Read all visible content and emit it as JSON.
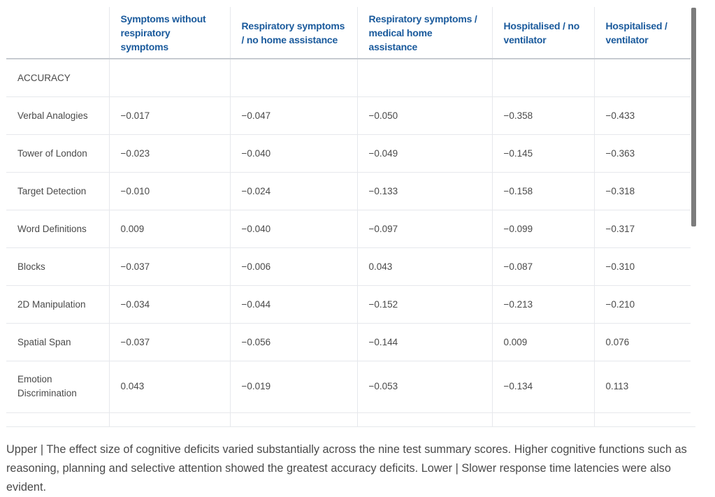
{
  "table": {
    "headers": [
      "",
      "Symptoms without respiratory symptoms",
      "Respiratory symptoms / no home assistance",
      "Respiratory symptoms / medical home assistance",
      "Hospitalised / no ventilator",
      "Hospitalised / ventilator"
    ],
    "section_label": "ACCURACY",
    "rows": [
      {
        "label": "Verbal Analogies",
        "values": [
          "−0.017",
          "−0.047",
          "−0.050",
          "−0.358",
          "−0.433"
        ]
      },
      {
        "label": "Tower of London",
        "values": [
          "−0.023",
          "−0.040",
          "−0.049",
          "−0.145",
          "−0.363"
        ]
      },
      {
        "label": "Target Detection",
        "values": [
          "−0.010",
          "−0.024",
          "−0.133",
          "−0.158",
          "−0.318"
        ]
      },
      {
        "label": "Word Definitions",
        "values": [
          "0.009",
          "−0.040",
          "−0.097",
          "−0.099",
          "−0.317"
        ]
      },
      {
        "label": "Blocks",
        "values": [
          "−0.037",
          "−0.006",
          "0.043",
          "−0.087",
          "−0.310"
        ]
      },
      {
        "label": "2D Manipulation",
        "values": [
          "−0.034",
          "−0.044",
          "−0.152",
          "−0.213",
          "−0.210"
        ]
      },
      {
        "label": "Spatial Span",
        "values": [
          "−0.037",
          "−0.056",
          "−0.144",
          "0.009",
          "0.076"
        ]
      },
      {
        "label": "Emotion Discrimination",
        "values": [
          "0.043",
          "−0.019",
          "−0.053",
          "−0.134",
          "0.113"
        ]
      }
    ]
  },
  "caption": "Upper | The effect size of cognitive deficits varied substantially across the nine test summary scores. Higher cognitive functions such as reasoning, planning and selective attention showed the greatest accuracy deficits. Lower | Slower response time latencies were also evident."
}
